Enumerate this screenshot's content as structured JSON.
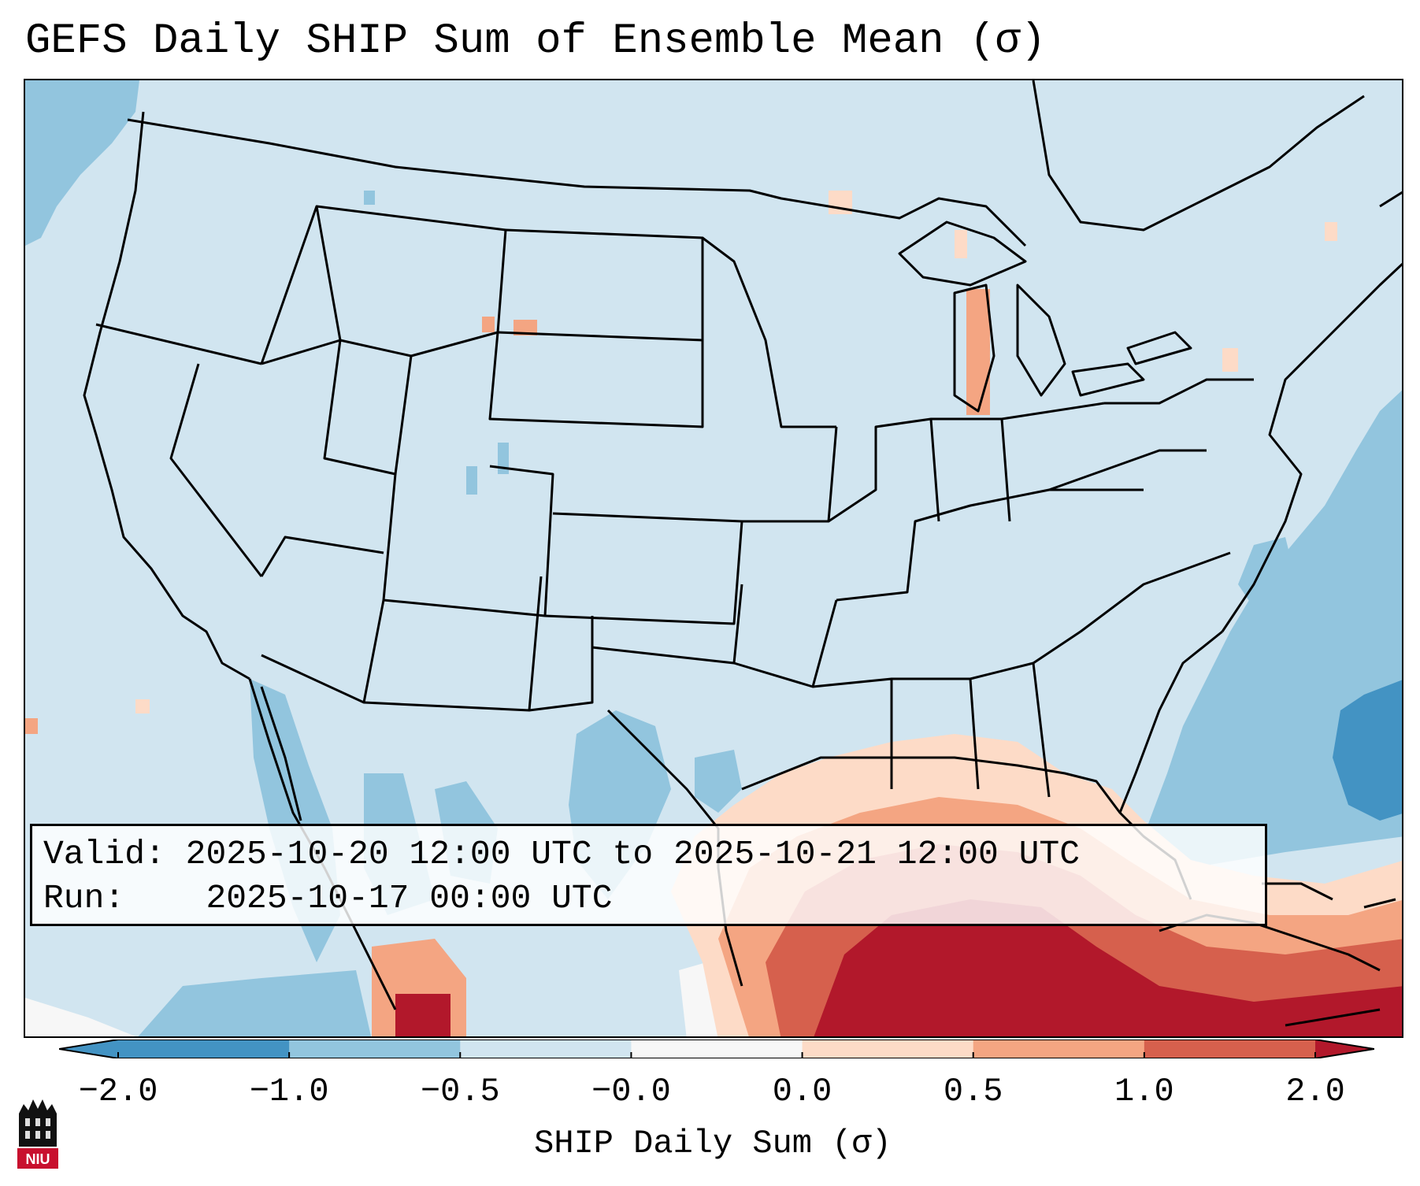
{
  "title": "GEFS Daily SHIP Sum of Ensemble Mean (σ)",
  "info_box": {
    "valid_label": "Valid:",
    "valid_value": "2025-10-20 12:00 UTC to 2025-10-21 12:00 UTC",
    "run_label": "Run:",
    "run_value": "2025-10-17 00:00 UTC"
  },
  "colorbar": {
    "label": "SHIP Daily Sum (σ)",
    "ticks": [
      "−2.0",
      "−1.0",
      "−0.5",
      "−0.0",
      "0.0",
      "0.5",
      "1.0",
      "2.0"
    ],
    "colors": [
      "#4393c3",
      "#92c5de",
      "#d1e5f0",
      "#f7f7f7",
      "#fddbc7",
      "#f4a582",
      "#d6604d",
      "#b2182b"
    ],
    "extend": "both"
  },
  "logo": {
    "text": "NIU",
    "name": "niu-logo"
  }
}
